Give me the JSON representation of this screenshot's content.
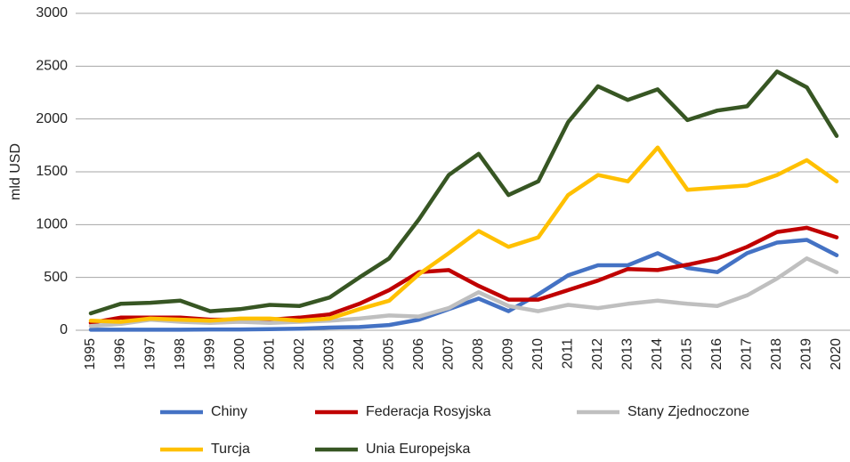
{
  "chart_data": {
    "type": "line",
    "y_label": "mld USD",
    "categories": [
      "1995",
      "1996",
      "1997",
      "1998",
      "1999",
      "2000",
      "2001",
      "2002",
      "2003",
      "2004",
      "2005",
      "2006",
      "2007",
      "2008",
      "2009",
      "2010",
      "2011",
      "2012",
      "2013",
      "2014",
      "2015",
      "2016",
      "2017",
      "2018",
      "2019",
      "2020"
    ],
    "ylim": [
      0,
      3000
    ],
    "yticks": [
      0,
      500,
      1000,
      1500,
      2000,
      2500,
      3000
    ],
    "grid": true,
    "legend": "bottom",
    "series": [
      {
        "name": "Chiny",
        "color": "#4472c4",
        "values": [
          5,
          5,
          5,
          5,
          8,
          8,
          10,
          15,
          25,
          30,
          50,
          100,
          200,
          300,
          180,
          340,
          520,
          615,
          615,
          730,
          590,
          550,
          730,
          830,
          855,
          710
        ]
      },
      {
        "name": "Federacja Rosyjska",
        "color": "#c00000",
        "values": [
          70,
          120,
          120,
          120,
          100,
          100,
          100,
          120,
          150,
          250,
          380,
          550,
          570,
          420,
          290,
          290,
          380,
          470,
          580,
          570,
          620,
          680,
          790,
          930,
          970,
          880
        ]
      },
      {
        "name": "Stany Zjednoczone",
        "color": "#bfbfbf",
        "values": [
          40,
          60,
          100,
          80,
          70,
          80,
          70,
          80,
          90,
          110,
          140,
          130,
          210,
          360,
          230,
          180,
          240,
          210,
          250,
          280,
          250,
          230,
          330,
          490,
          680,
          550
        ]
      },
      {
        "name": "Turcja",
        "color": "#ffc000",
        "values": [
          90,
          80,
          110,
          100,
          90,
          110,
          110,
          90,
          110,
          200,
          280,
          530,
          730,
          940,
          790,
          880,
          1280,
          1470,
          1410,
          1730,
          1330,
          1350,
          1370,
          1470,
          1610,
          1410
        ]
      },
      {
        "name": "Unia Europejska",
        "color": "#375623",
        "values": [
          160,
          250,
          260,
          280,
          180,
          200,
          240,
          230,
          310,
          500,
          680,
          1050,
          1470,
          1670,
          1280,
          1410,
          1970,
          2310,
          2180,
          2280,
          1990,
          2080,
          2120,
          2450,
          2300,
          1840
        ]
      }
    ]
  }
}
